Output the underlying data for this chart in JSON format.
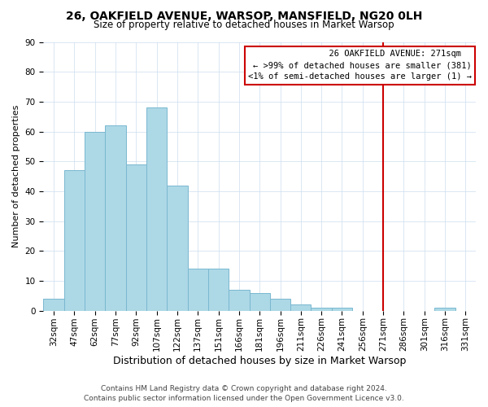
{
  "title": "26, OAKFIELD AVENUE, WARSOP, MANSFIELD, NG20 0LH",
  "subtitle": "Size of property relative to detached houses in Market Warsop",
  "xlabel": "Distribution of detached houses by size in Market Warsop",
  "ylabel": "Number of detached properties",
  "footer_line1": "Contains HM Land Registry data © Crown copyright and database right 2024.",
  "footer_line2": "Contains public sector information licensed under the Open Government Licence v3.0.",
  "bar_labels": [
    "32sqm",
    "47sqm",
    "62sqm",
    "77sqm",
    "92sqm",
    "107sqm",
    "122sqm",
    "137sqm",
    "151sqm",
    "166sqm",
    "181sqm",
    "196sqm",
    "211sqm",
    "226sqm",
    "241sqm",
    "256sqm",
    "271sqm",
    "286sqm",
    "301sqm",
    "316sqm",
    "331sqm"
  ],
  "bar_values": [
    4,
    47,
    60,
    62,
    49,
    68,
    42,
    14,
    14,
    7,
    6,
    4,
    2,
    1,
    1,
    0,
    0,
    0,
    0,
    1,
    0
  ],
  "bar_color": "#add8e6",
  "bar_edge_color": "#7ab8d0",
  "highlight_index": 16,
  "highlight_color": "#cc0000",
  "ylim": [
    0,
    90
  ],
  "yticks": [
    0,
    10,
    20,
    30,
    40,
    50,
    60,
    70,
    80,
    90
  ],
  "annotation_title": "26 OAKFIELD AVENUE: 271sqm",
  "annotation_line1": "← >99% of detached houses are smaller (381)",
  "annotation_line2": "<1% of semi-detached houses are larger (1) →",
  "title_fontsize": 10,
  "subtitle_fontsize": 8.5,
  "xlabel_fontsize": 9,
  "ylabel_fontsize": 8,
  "tick_fontsize": 7.5,
  "annotation_fontsize": 7.5,
  "footer_fontsize": 6.5
}
